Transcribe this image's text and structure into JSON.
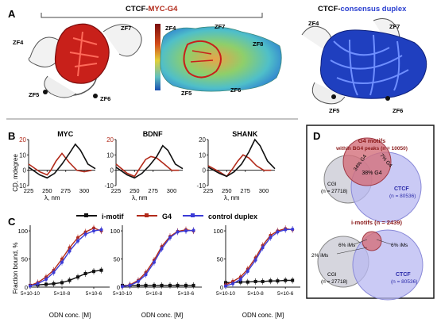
{
  "panel_a": {
    "letter": "A",
    "title_left_a": "CTCF-",
    "title_left_b": "MYC-G4",
    "title_right_a": "CTCF-",
    "title_right_b": "consensus duplex",
    "zf_left": [
      "ZF4",
      "ZF7",
      "ZF5",
      "ZF6"
    ],
    "zf_mid": [
      "ZF4",
      "ZF7",
      "ZF8",
      "ZF5",
      "ZF6"
    ],
    "zf_right": [
      "ZF4",
      "ZF7",
      "ZF5",
      "ZF6"
    ]
  },
  "panel_b": {
    "letter": "B",
    "ylabel": "CD, mdegree",
    "xlabel": "λ, nm",
    "titles": [
      "MYC",
      "BDNF",
      "SHANK"
    ],
    "yticks": [
      "20",
      "10",
      "0",
      "-10"
    ],
    "xticks": [
      "225",
      "250",
      "275",
      "300"
    ]
  },
  "panel_c": {
    "letter": "C",
    "legend": [
      "i-motif",
      "G4",
      "control duplex"
    ],
    "ylabel": "Fraction bound, %",
    "xlabel": "ODN conc. [M]",
    "yticks": [
      "100",
      "50",
      "0"
    ],
    "xticks": [
      "5×10-10",
      "5×10-8",
      "5×10-6"
    ]
  },
  "panel_d": {
    "letter": "D",
    "top_title_1": "G4 motifs",
    "top_title_2": "within BG4 peaks (n = 10050)",
    "top_cgi": "CGI",
    "top_cgi_n": "(n = 27718)",
    "top_ctcf": "CTCF",
    "top_ctcf_n": "(n = 80536)",
    "top_left_pct": "34% G4",
    "top_mid_pct": "38% G4",
    "top_right_pct": "7% G4",
    "bot_title": "i-motifs (n = 2439)",
    "bot_cgi": "CGI",
    "bot_cgi_n": "(n = 27718)",
    "bot_ctcf": "CTCF",
    "bot_ctcf_n": "(n = 80536)",
    "bot_left_pct": "6% iMs",
    "bot_right_pct": "6% iMs",
    "bot_outer_pct": "2% iMs"
  },
  "colors": {
    "g4": "#b22a1a",
    "imotif": "#111111",
    "duplex": "#3b3bd6",
    "dna_blue": "#1f3fbf",
    "cgi_fill": "#c9c9d6",
    "ctcf_fill": "#b8b8f2",
    "g4_fill": "#d36f7a",
    "frame": "#1a1a1a"
  },
  "chart_data": [
    {
      "type": "line",
      "title": "MYC",
      "xlabel": "λ, nm",
      "ylabel": "CD, mdegree",
      "xlim": [
        225,
        315
      ],
      "ylim": [
        -10,
        20
      ],
      "series": [
        {
          "name": "G4",
          "x": [
            225,
            240,
            250,
            255,
            262,
            270,
            280,
            290,
            300,
            310
          ],
          "y": [
            4,
            -1,
            -3,
            0,
            6,
            11,
            5,
            0,
            -1,
            0
          ]
        },
        {
          "name": "i-motif",
          "x": [
            225,
            240,
            250,
            260,
            270,
            280,
            288,
            295,
            305,
            315
          ],
          "y": [
            2,
            -3,
            -5,
            -2,
            4,
            11,
            17,
            13,
            4,
            1
          ]
        }
      ]
    },
    {
      "type": "line",
      "title": "BDNF",
      "xlabel": "λ, nm",
      "ylabel": "CD, mdegree",
      "xlim": [
        225,
        315
      ],
      "ylim": [
        -10,
        20
      ],
      "series": [
        {
          "name": "G4",
          "x": [
            225,
            240,
            250,
            258,
            265,
            272,
            280,
            290,
            300,
            310
          ],
          "y": [
            4,
            -2,
            -4,
            2,
            7,
            9,
            8,
            4,
            0,
            0
          ]
        },
        {
          "name": "i-motif",
          "x": [
            225,
            240,
            250,
            260,
            270,
            280,
            288,
            295,
            305,
            315
          ],
          "y": [
            2,
            -3,
            -5,
            -2,
            3,
            9,
            16,
            13,
            4,
            1
          ]
        }
      ]
    },
    {
      "type": "line",
      "title": "SHANK",
      "xlabel": "λ, nm",
      "ylabel": "CD, mdegree",
      "xlim": [
        225,
        315
      ],
      "ylim": [
        -10,
        20
      ],
      "series": [
        {
          "name": "G4",
          "x": [
            225,
            240,
            250,
            258,
            265,
            272,
            280,
            290,
            300,
            310
          ],
          "y": [
            3,
            -1,
            -4,
            1,
            6,
            10,
            8,
            3,
            0,
            0
          ]
        },
        {
          "name": "i-motif",
          "x": [
            225,
            240,
            250,
            260,
            270,
            280,
            288,
            295,
            305,
            315
          ],
          "y": [
            2,
            -2,
            -4,
            -1,
            4,
            12,
            20,
            16,
            6,
            1
          ]
        }
      ]
    },
    {
      "type": "scatter",
      "xlabel": "ODN conc. [M]",
      "ylabel": "Fraction bound, %",
      "xscale": "log",
      "xlim": [
        5e-10,
        5e-05
      ],
      "ylim": [
        0,
        110
      ],
      "series": [
        {
          "name": "i-motif",
          "x": [
            5e-10,
            1.5e-09,
            5e-09,
            1.5e-08,
            5e-08,
            1.5e-07,
            5e-07,
            1.5e-06,
            5e-06,
            1.5e-05
          ],
          "y": [
            3,
            4,
            5,
            6,
            8,
            12,
            18,
            24,
            28,
            30
          ]
        },
        {
          "name": "G4",
          "x": [
            5e-10,
            1.5e-09,
            5e-09,
            1.5e-08,
            5e-08,
            1.5e-07,
            5e-07,
            1.5e-06,
            5e-06,
            1.5e-05
          ],
          "y": [
            3,
            8,
            18,
            30,
            50,
            70,
            88,
            98,
            105,
            100
          ]
        },
        {
          "name": "control duplex",
          "x": [
            5e-10,
            1.5e-09,
            5e-09,
            1.5e-08,
            5e-08,
            1.5e-07,
            5e-07,
            1.5e-06,
            5e-06,
            1.5e-05
          ],
          "y": [
            2,
            6,
            14,
            26,
            44,
            64,
            82,
            94,
            100,
            102
          ]
        }
      ]
    },
    {
      "type": "scatter",
      "xlabel": "ODN conc. [M]",
      "ylabel": "Fraction bound, %",
      "xscale": "log",
      "xlim": [
        5e-10,
        5e-05
      ],
      "ylim": [
        0,
        110
      ],
      "series": [
        {
          "name": "i-motif",
          "x": [
            5e-10,
            1.5e-09,
            5e-09,
            1.5e-08,
            5e-08,
            1.5e-07,
            5e-07,
            1.5e-06,
            5e-06,
            1.5e-05
          ],
          "y": [
            3,
            3,
            3,
            3,
            3,
            3,
            3,
            3,
            3,
            3
          ]
        },
        {
          "name": "G4",
          "x": [
            5e-10,
            1.5e-09,
            5e-09,
            1.5e-08,
            5e-08,
            1.5e-07,
            5e-07,
            1.5e-06,
            5e-06,
            1.5e-05
          ],
          "y": [
            1,
            4,
            12,
            26,
            48,
            72,
            90,
            99,
            102,
            100
          ]
        },
        {
          "name": "control duplex",
          "x": [
            5e-10,
            1.5e-09,
            5e-09,
            1.5e-08,
            5e-08,
            1.5e-07,
            5e-07,
            1.5e-06,
            5e-06,
            1.5e-05
          ],
          "y": [
            1,
            3,
            10,
            22,
            44,
            68,
            88,
            98,
            100,
            101
          ]
        }
      ]
    },
    {
      "type": "scatter",
      "xlabel": "ODN conc. [M]",
      "ylabel": "Fraction bound, %",
      "xscale": "log",
      "xlim": [
        5e-10,
        5e-05
      ],
      "ylim": [
        0,
        110
      ],
      "series": [
        {
          "name": "i-motif",
          "x": [
            5e-10,
            1.5e-09,
            5e-09,
            1.5e-08,
            5e-08,
            1.5e-07,
            5e-07,
            1.5e-06,
            5e-06,
            1.5e-05
          ],
          "y": [
            8,
            8,
            9,
            9,
            10,
            10,
            11,
            11,
            12,
            12
          ]
        },
        {
          "name": "G4",
          "x": [
            5e-10,
            1.5e-09,
            5e-09,
            1.5e-08,
            5e-08,
            1.5e-07,
            5e-07,
            1.5e-06,
            5e-06,
            1.5e-05
          ],
          "y": [
            4,
            10,
            18,
            32,
            52,
            74,
            92,
            100,
            104,
            102
          ]
        },
        {
          "name": "control duplex",
          "x": [
            5e-10,
            1.5e-09,
            5e-09,
            1.5e-08,
            5e-08,
            1.5e-07,
            5e-07,
            1.5e-06,
            5e-06,
            1.5e-05
          ],
          "y": [
            2,
            6,
            14,
            28,
            48,
            70,
            88,
            98,
            102,
            103
          ]
        }
      ]
    }
  ]
}
